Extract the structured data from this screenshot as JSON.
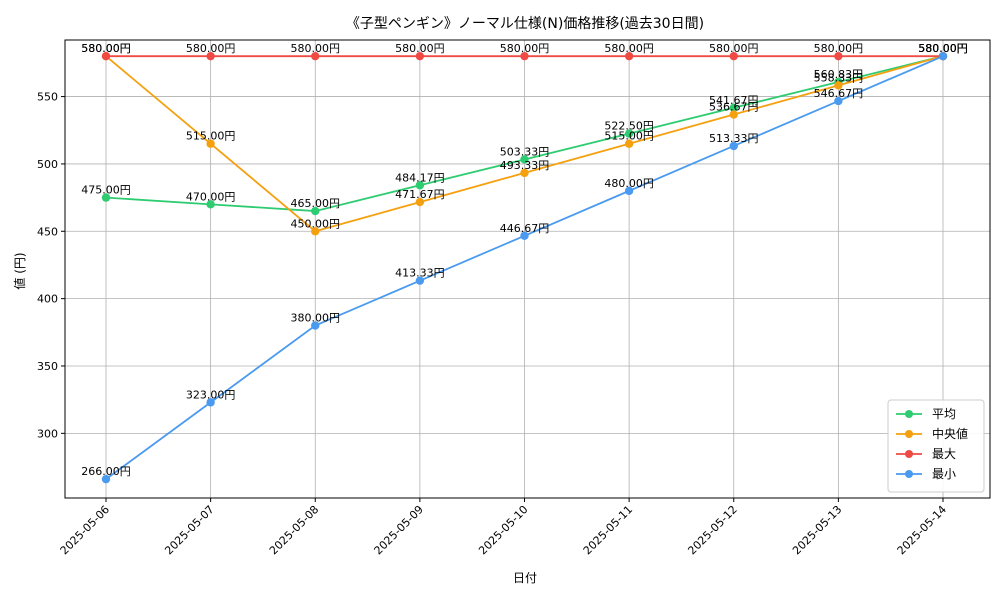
{
  "chart_data": {
    "type": "line",
    "title": "《子型ペンギン》ノーマル仕様(N)価格推移(過去30日間)",
    "xlabel": "日付",
    "ylabel": "値 (円)",
    "label_suffix": "円",
    "categories": [
      "2025-05-06",
      "2025-05-07",
      "2025-05-08",
      "2025-05-09",
      "2025-05-10",
      "2025-05-11",
      "2025-05-12",
      "2025-05-13",
      "2025-05-14"
    ],
    "ylim": [
      252,
      592
    ],
    "yticks": [
      300,
      350,
      400,
      450,
      500,
      550
    ],
    "grid": true,
    "legend_position": "bottom-right",
    "series": [
      {
        "name": "平均",
        "color": "#2ecc71",
        "values": [
          475.0,
          470.0,
          465.0,
          484.17,
          503.33,
          522.5,
          541.67,
          560.83,
          580.0
        ]
      },
      {
        "name": "中央値",
        "color": "#f5a00f",
        "values": [
          580.0,
          515.0,
          450.0,
          471.67,
          493.33,
          515.0,
          536.67,
          558.33,
          580.0
        ]
      },
      {
        "name": "最大",
        "color": "#f04a44",
        "values": [
          580.0,
          580.0,
          580.0,
          580.0,
          580.0,
          580.0,
          580.0,
          580.0,
          580.0
        ]
      },
      {
        "name": "最小",
        "color": "#4a9af0",
        "values": [
          266.0,
          323.0,
          380.0,
          413.33,
          446.67,
          480.0,
          513.33,
          546.67,
          580.0
        ]
      }
    ]
  }
}
